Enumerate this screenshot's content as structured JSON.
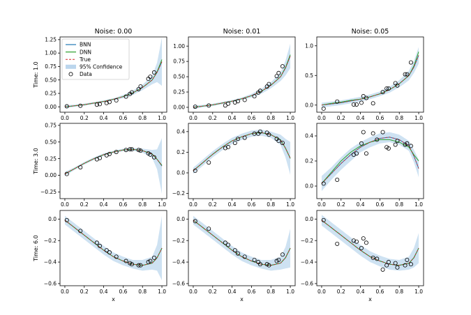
{
  "legend": {
    "entries": [
      {
        "key": "bnn",
        "label": "BNN",
        "color": "#1f77b4",
        "style": "line"
      },
      {
        "key": "dnn",
        "label": "DNN",
        "color": "#2ca02c",
        "style": "line"
      },
      {
        "key": "true",
        "label": "True",
        "color": "#d62728",
        "style": "dashed"
      },
      {
        "key": "ci",
        "label": "95% Confidence",
        "color": "#9ec5e5",
        "style": "band"
      },
      {
        "key": "data",
        "label": "Data",
        "color": "#000000",
        "style": "marker"
      }
    ]
  },
  "chart_data": [
    {
      "type": "line",
      "row": 0,
      "col": 0,
      "noise": 0.0,
      "time": 1.0,
      "title": "Noise: 0.00",
      "ylabel": "Time: 1.0",
      "xlabel": "",
      "xlim": [
        -0.05,
        1.05
      ],
      "ylim": [
        -0.1,
        1.3
      ],
      "yticks": [
        0.0,
        0.25,
        0.5,
        0.75,
        1.0,
        1.25
      ],
      "ytick_labels": [
        "0.00",
        "0.25",
        "0.50",
        "0.75",
        "1.00",
        "1.25"
      ],
      "xticks": [
        0.0,
        0.2,
        0.4,
        0.6,
        0.8,
        1.0
      ],
      "xtick_labels": [
        "0.0",
        "0.2",
        "0.4",
        "0.6",
        "0.8",
        "1.0"
      ],
      "ci_halfwidth": [
        0.03,
        0.02,
        0.02,
        0.02,
        0.02,
        0.02,
        0.03,
        0.04,
        0.05,
        0.08,
        0.18,
        0.45
      ],
      "curve_dnn_offset": [
        0,
        0,
        0,
        0,
        0,
        0,
        0,
        0,
        0,
        0,
        0.01,
        0.04
      ],
      "true_y": [
        0.0,
        0.02,
        0.04,
        0.07,
        0.1,
        0.14,
        0.19,
        0.26,
        0.36,
        0.5,
        0.64,
        0.84
      ],
      "data_x": [
        0.02,
        0.16,
        0.33,
        0.36,
        0.43,
        0.46,
        0.53,
        0.63,
        0.67,
        0.69,
        0.76,
        0.78,
        0.86,
        0.88,
        0.92
      ],
      "data_y": [
        0.01,
        0.02,
        0.04,
        0.05,
        0.07,
        0.09,
        0.12,
        0.19,
        0.24,
        0.27,
        0.33,
        0.38,
        0.52,
        0.56,
        0.64
      ]
    },
    {
      "type": "line",
      "row": 0,
      "col": 1,
      "noise": 0.01,
      "time": 1.0,
      "title": "Noise: 0.01",
      "ylabel": "",
      "xlabel": "",
      "xlim": [
        -0.05,
        1.05
      ],
      "ylim": [
        -0.08,
        1.15
      ],
      "yticks": [
        0.0,
        0.25,
        0.5,
        0.75,
        1.0
      ],
      "ytick_labels": [
        "0.00",
        "0.25",
        "0.50",
        "0.75",
        "1.00"
      ],
      "xticks": [
        0.0,
        0.2,
        0.4,
        0.6,
        0.8,
        1.0
      ],
      "xtick_labels": [
        "0.0",
        "0.2",
        "0.4",
        "0.6",
        "0.8",
        "1.0"
      ],
      "ci_halfwidth": [
        0.03,
        0.02,
        0.02,
        0.02,
        0.02,
        0.02,
        0.03,
        0.04,
        0.05,
        0.07,
        0.12,
        0.2
      ],
      "curve_dnn_offset": [
        0,
        0,
        0,
        0,
        0,
        0,
        0,
        0,
        0,
        0,
        0.01,
        0.02
      ],
      "true_y": [
        0.0,
        0.02,
        0.04,
        0.07,
        0.1,
        0.14,
        0.19,
        0.26,
        0.36,
        0.5,
        0.64,
        0.84
      ],
      "data_x": [
        0.02,
        0.16,
        0.33,
        0.36,
        0.43,
        0.46,
        0.53,
        0.63,
        0.67,
        0.69,
        0.76,
        0.78,
        0.86,
        0.88,
        0.92
      ],
      "data_y": [
        0.01,
        0.03,
        0.03,
        0.06,
        0.08,
        0.1,
        0.12,
        0.18,
        0.24,
        0.27,
        0.34,
        0.38,
        0.51,
        0.56,
        0.67
      ]
    },
    {
      "type": "line",
      "row": 0,
      "col": 2,
      "noise": 0.05,
      "time": 1.0,
      "title": "Noise: 0.05",
      "ylabel": "",
      "xlabel": "",
      "xlim": [
        -0.05,
        1.05
      ],
      "ylim": [
        -0.12,
        1.15
      ],
      "yticks": [
        0.0,
        0.5,
        1.0
      ],
      "ytick_labels": [
        "0.0",
        "0.5",
        "1.0"
      ],
      "xticks": [
        0.0,
        0.2,
        0.4,
        0.6,
        0.8,
        1.0
      ],
      "xtick_labels": [
        "0.0",
        "0.2",
        "0.4",
        "0.6",
        "0.8",
        "1.0"
      ],
      "ci_halfwidth": [
        0.04,
        0.04,
        0.04,
        0.04,
        0.04,
        0.04,
        0.04,
        0.05,
        0.06,
        0.08,
        0.1,
        0.14
      ],
      "curve_dnn_offset": [
        0,
        0.01,
        0.01,
        0.01,
        0.0,
        0.0,
        0.0,
        0.0,
        0.0,
        0.0,
        0.02,
        0.06
      ],
      "true_y": [
        0.0,
        0.02,
        0.04,
        0.07,
        0.1,
        0.14,
        0.19,
        0.26,
        0.36,
        0.5,
        0.64,
        0.84
      ],
      "data_x": [
        0.02,
        0.16,
        0.33,
        0.36,
        0.41,
        0.43,
        0.46,
        0.53,
        0.63,
        0.67,
        0.69,
        0.76,
        0.78,
        0.86,
        0.88,
        0.92
      ],
      "data_y": [
        -0.06,
        0.06,
        0.01,
        0.01,
        0.04,
        0.15,
        0.12,
        0.03,
        0.22,
        0.28,
        0.28,
        0.37,
        0.33,
        0.52,
        0.52,
        0.72
      ]
    },
    {
      "type": "line",
      "row": 1,
      "col": 0,
      "noise": 0.0,
      "time": 3.0,
      "title": "",
      "ylabel": "Time: 3.0",
      "xlabel": "",
      "xlim": [
        -0.05,
        1.05
      ],
      "ylim": [
        -0.35,
        0.78
      ],
      "yticks": [
        -0.25,
        0.0,
        0.25,
        0.5,
        0.75
      ],
      "ytick_labels": [
        "−0.25",
        "0.00",
        "0.25",
        "0.50",
        "0.75"
      ],
      "xticks": [
        0.0,
        0.2,
        0.4,
        0.6,
        0.8,
        1.0
      ],
      "xtick_labels": [
        "0.0",
        "0.2",
        "0.4",
        "0.6",
        "0.8",
        "1.0"
      ],
      "ci_halfwidth": [
        0.03,
        0.02,
        0.02,
        0.02,
        0.02,
        0.02,
        0.02,
        0.02,
        0.03,
        0.06,
        0.15,
        0.42
      ],
      "curve_dnn_offset": [
        0,
        0,
        0,
        0,
        0,
        0,
        0,
        0,
        0,
        0,
        0,
        0.01
      ],
      "true_y": [
        0.02,
        0.1,
        0.18,
        0.25,
        0.31,
        0.35,
        0.38,
        0.39,
        0.37,
        0.32,
        0.24,
        0.14
      ],
      "data_x": [
        0.02,
        0.16,
        0.33,
        0.36,
        0.43,
        0.46,
        0.53,
        0.63,
        0.67,
        0.69,
        0.76,
        0.78,
        0.86,
        0.88,
        0.92
      ],
      "data_y": [
        0.02,
        0.12,
        0.24,
        0.26,
        0.3,
        0.32,
        0.35,
        0.38,
        0.39,
        0.39,
        0.38,
        0.37,
        0.33,
        0.31,
        0.27
      ]
    },
    {
      "type": "line",
      "row": 1,
      "col": 1,
      "noise": 0.01,
      "time": 3.0,
      "title": "",
      "ylabel": "",
      "xlabel": "",
      "xlim": [
        -0.05,
        1.05
      ],
      "ylim": [
        -0.25,
        0.48
      ],
      "yticks": [
        -0.2,
        0.0,
        0.2,
        0.4
      ],
      "ytick_labels": [
        "−0.2",
        "0.0",
        "0.2",
        "0.4"
      ],
      "xticks": [
        0.0,
        0.2,
        0.4,
        0.6,
        0.8,
        1.0
      ],
      "xtick_labels": [
        "0.0",
        "0.2",
        "0.4",
        "0.6",
        "0.8",
        "1.0"
      ],
      "ci_halfwidth": [
        0.03,
        0.03,
        0.03,
        0.03,
        0.03,
        0.03,
        0.03,
        0.03,
        0.03,
        0.05,
        0.09,
        0.16
      ],
      "curve_dnn_offset": [
        0,
        0,
        0,
        0,
        0,
        0,
        0,
        0,
        0,
        0,
        0,
        0.0
      ],
      "true_y": [
        0.02,
        0.1,
        0.18,
        0.25,
        0.31,
        0.35,
        0.38,
        0.39,
        0.37,
        0.32,
        0.24,
        0.14
      ],
      "data_x": [
        0.02,
        0.16,
        0.33,
        0.36,
        0.43,
        0.46,
        0.53,
        0.63,
        0.67,
        0.69,
        0.76,
        0.78,
        0.86,
        0.88,
        0.92
      ],
      "data_y": [
        0.02,
        0.1,
        0.24,
        0.25,
        0.29,
        0.33,
        0.34,
        0.38,
        0.38,
        0.4,
        0.39,
        0.37,
        0.33,
        0.31,
        0.29
      ]
    },
    {
      "type": "line",
      "row": 1,
      "col": 2,
      "noise": 0.05,
      "time": 3.0,
      "title": "",
      "ylabel": "",
      "xlabel": "",
      "xlim": [
        -0.05,
        1.05
      ],
      "ylim": [
        -0.1,
        0.5
      ],
      "yticks": [
        0.0,
        0.2,
        0.4
      ],
      "ytick_labels": [
        "0.0",
        "0.2",
        "0.4"
      ],
      "xticks": [
        0.0,
        0.2,
        0.4,
        0.6,
        0.8,
        1.0
      ],
      "xtick_labels": [
        "0.0",
        "0.2",
        "0.4",
        "0.6",
        "0.8",
        "1.0"
      ],
      "ci_halfwidth": [
        0.06,
        0.05,
        0.05,
        0.05,
        0.04,
        0.04,
        0.04,
        0.04,
        0.04,
        0.04,
        0.05,
        0.07
      ],
      "curve_dnn_offset": [
        0.0,
        0.01,
        0.02,
        0.02,
        0.01,
        0.0,
        -0.01,
        -0.02,
        -0.02,
        -0.01,
        0.01,
        0.06
      ],
      "true_y": [
        0.02,
        0.1,
        0.18,
        0.25,
        0.31,
        0.35,
        0.38,
        0.39,
        0.37,
        0.32,
        0.24,
        0.14
      ],
      "data_x": [
        0.02,
        0.16,
        0.33,
        0.36,
        0.41,
        0.43,
        0.46,
        0.53,
        0.57,
        0.63,
        0.67,
        0.69,
        0.76,
        0.78,
        0.86,
        0.88,
        0.92
      ],
      "data_y": [
        0.02,
        0.05,
        0.25,
        0.26,
        0.34,
        0.43,
        0.26,
        0.42,
        0.37,
        0.43,
        0.31,
        0.3,
        0.33,
        0.36,
        0.33,
        0.34,
        0.32
      ]
    },
    {
      "type": "line",
      "row": 2,
      "col": 0,
      "noise": 0.0,
      "time": 6.0,
      "title": "",
      "ylabel": "Time: 6.0",
      "xlabel": "x",
      "xlim": [
        -0.05,
        1.05
      ],
      "ylim": [
        -0.62,
        0.08
      ],
      "yticks": [
        -0.6,
        -0.4,
        -0.2,
        0.0
      ],
      "ytick_labels": [
        "−0.6",
        "−0.4",
        "−0.2",
        "0.0"
      ],
      "xticks": [
        0.0,
        0.2,
        0.4,
        0.6,
        0.8,
        1.0
      ],
      "xtick_labels": [
        "0.0",
        "0.2",
        "0.4",
        "0.6",
        "0.8",
        "1.0"
      ],
      "ci_halfwidth": [
        0.04,
        0.04,
        0.04,
        0.04,
        0.04,
        0.04,
        0.04,
        0.04,
        0.05,
        0.06,
        0.12,
        0.3
      ],
      "curve_dnn_offset": [
        0,
        0,
        0,
        0,
        0,
        0,
        0,
        0,
        0,
        0,
        0,
        0.0
      ],
      "true_y": [
        -0.01,
        -0.08,
        -0.15,
        -0.22,
        -0.29,
        -0.35,
        -0.39,
        -0.42,
        -0.43,
        -0.41,
        -0.36,
        -0.27
      ],
      "data_x": [
        0.02,
        0.16,
        0.33,
        0.36,
        0.43,
        0.46,
        0.53,
        0.63,
        0.67,
        0.69,
        0.76,
        0.78,
        0.86,
        0.88,
        0.92
      ],
      "data_y": [
        -0.01,
        -0.11,
        -0.22,
        -0.25,
        -0.29,
        -0.31,
        -0.35,
        -0.39,
        -0.41,
        -0.42,
        -0.43,
        -0.43,
        -0.4,
        -0.39,
        -0.36
      ]
    },
    {
      "type": "line",
      "row": 2,
      "col": 1,
      "noise": 0.01,
      "time": 6.0,
      "title": "",
      "ylabel": "",
      "xlabel": "x",
      "xlim": [
        -0.05,
        1.05
      ],
      "ylim": [
        -0.62,
        0.08
      ],
      "yticks": [
        -0.6,
        -0.4,
        -0.2,
        0.0
      ],
      "ytick_labels": [
        "−0.6",
        "−0.4",
        "−0.2",
        "0.0"
      ],
      "xticks": [
        0.0,
        0.2,
        0.4,
        0.6,
        0.8,
        1.0
      ],
      "xtick_labels": [
        "0.0",
        "0.2",
        "0.4",
        "0.6",
        "0.8",
        "1.0"
      ],
      "ci_halfwidth": [
        0.04,
        0.04,
        0.04,
        0.04,
        0.04,
        0.04,
        0.04,
        0.04,
        0.05,
        0.06,
        0.1,
        0.18
      ],
      "curve_dnn_offset": [
        0,
        0,
        0,
        0,
        0,
        0,
        0,
        0,
        0,
        0,
        0,
        0.0
      ],
      "true_y": [
        -0.01,
        -0.08,
        -0.15,
        -0.22,
        -0.29,
        -0.35,
        -0.39,
        -0.42,
        -0.43,
        -0.41,
        -0.36,
        -0.27
      ],
      "data_x": [
        0.02,
        0.16,
        0.33,
        0.36,
        0.43,
        0.46,
        0.53,
        0.63,
        0.67,
        0.69,
        0.76,
        0.78,
        0.86,
        0.88,
        0.92
      ],
      "data_y": [
        -0.02,
        -0.09,
        -0.22,
        -0.24,
        -0.29,
        -0.32,
        -0.35,
        -0.38,
        -0.4,
        -0.42,
        -0.42,
        -0.43,
        -0.39,
        -0.38,
        -0.33
      ]
    },
    {
      "type": "line",
      "row": 2,
      "col": 2,
      "noise": 0.05,
      "time": 6.0,
      "title": "",
      "ylabel": "",
      "xlabel": "x",
      "xlim": [
        -0.05,
        1.05
      ],
      "ylim": [
        -0.62,
        0.08
      ],
      "yticks": [
        -0.6,
        -0.4,
        -0.2,
        0.0
      ],
      "ytick_labels": [
        "−0.6",
        "−0.4",
        "−0.2",
        "0.0"
      ],
      "xticks": [
        0.0,
        0.2,
        0.4,
        0.6,
        0.8,
        1.0
      ],
      "xtick_labels": [
        "0.0",
        "0.2",
        "0.4",
        "0.6",
        "0.8",
        "1.0"
      ],
      "ci_halfwidth": [
        0.05,
        0.05,
        0.05,
        0.05,
        0.05,
        0.05,
        0.05,
        0.05,
        0.05,
        0.06,
        0.09,
        0.14
      ],
      "curve_dnn_offset": [
        0,
        0,
        0,
        0,
        0,
        0,
        0,
        0,
        0,
        0,
        0,
        0.0
      ],
      "true_y": [
        -0.01,
        -0.08,
        -0.15,
        -0.22,
        -0.29,
        -0.35,
        -0.39,
        -0.42,
        -0.43,
        -0.41,
        -0.36,
        -0.27
      ],
      "data_x": [
        0.02,
        0.16,
        0.33,
        0.36,
        0.41,
        0.43,
        0.46,
        0.53,
        0.57,
        0.63,
        0.67,
        0.69,
        0.76,
        0.78,
        0.86,
        0.88,
        0.92
      ],
      "data_y": [
        -0.01,
        -0.23,
        -0.2,
        -0.21,
        -0.27,
        -0.18,
        -0.22,
        -0.36,
        -0.37,
        -0.47,
        -0.43,
        -0.4,
        -0.41,
        -0.45,
        -0.43,
        -0.38,
        -0.42
      ]
    }
  ]
}
